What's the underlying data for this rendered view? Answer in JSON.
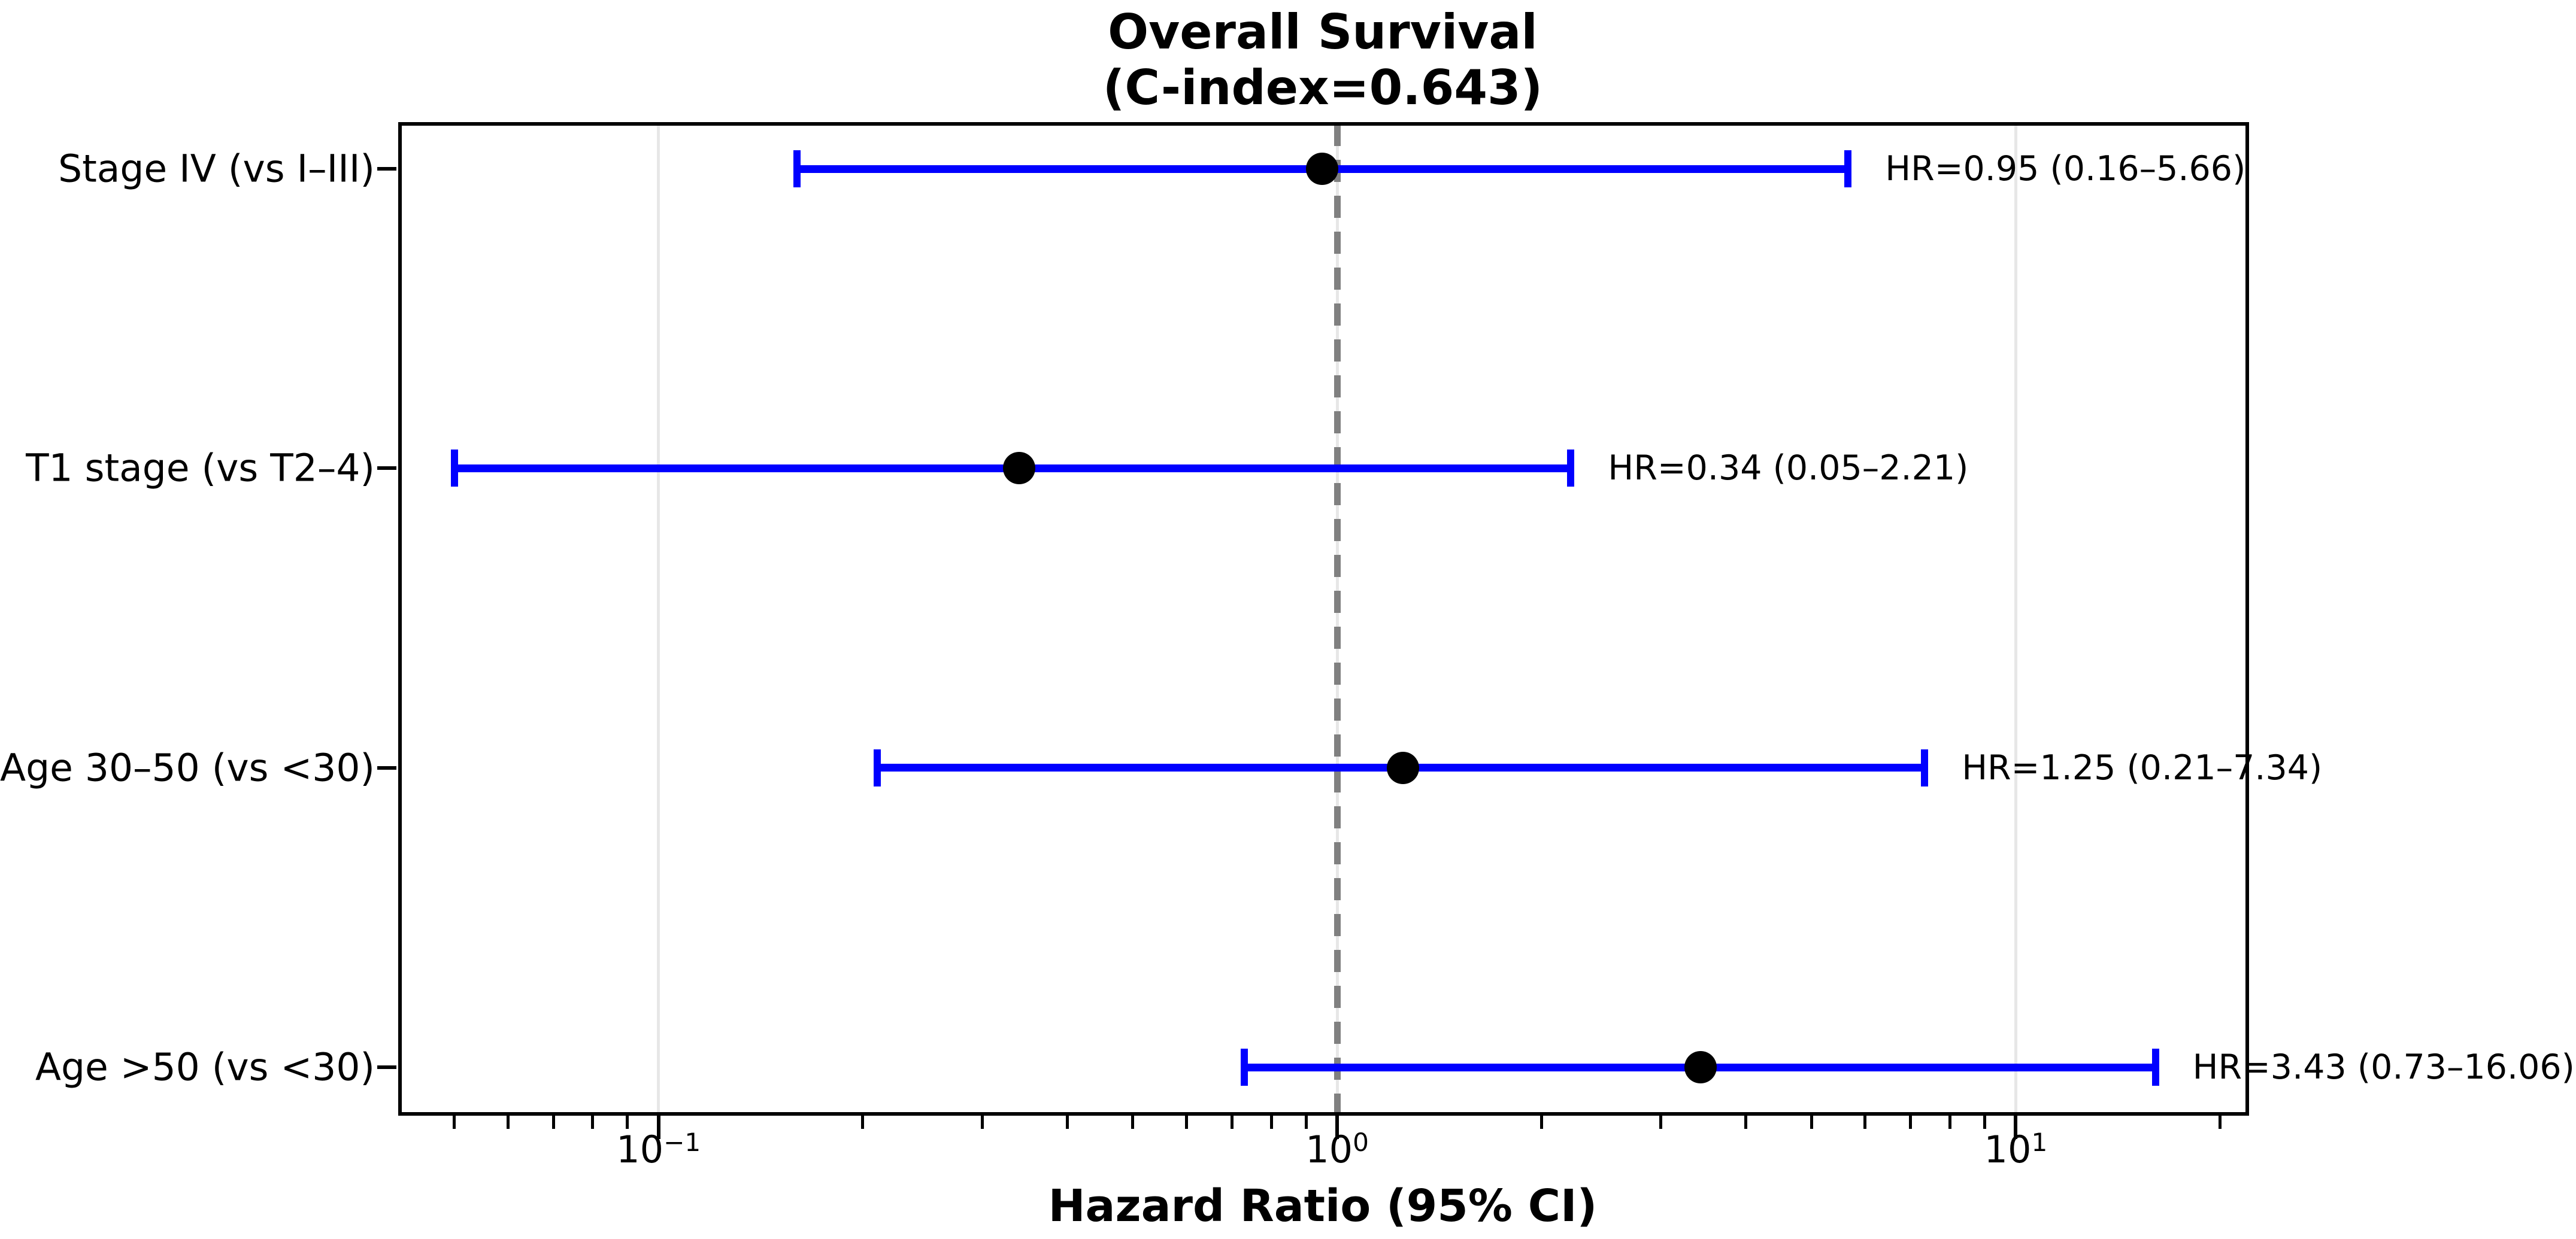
{
  "title": {
    "line1": "Overall Survival",
    "line2": "(C-index=0.643)"
  },
  "x_axis": {
    "label": "Hazard Ratio (95% CI)",
    "ticks": [
      {
        "value": 0.1,
        "base": "10",
        "exp": "−1"
      },
      {
        "value": 1,
        "base": "10",
        "exp": "0"
      },
      {
        "value": 10,
        "base": "10",
        "exp": "1"
      }
    ]
  },
  "chart_data": {
    "type": "scatter",
    "subtype": "forest-plot-with-error-bars",
    "title": "Overall Survival (C-index=0.643)",
    "xlabel": "Hazard Ratio (95% CI)",
    "ylabel": "",
    "xscale": "log",
    "xlim": [
      0.0416,
      21.8
    ],
    "x_major_ticks": [
      0.1,
      1,
      10
    ],
    "x_minor_ticks": "log decades 2-9 within range",
    "grid": "vertical gridlines at major ticks only",
    "legend": "none",
    "reference_line": {
      "x": 1.0,
      "style": "dashed",
      "orientation": "vertical"
    },
    "categories": [
      "Stage IV (vs I–III)",
      "T1 stage (vs T2–4)",
      "Age 30–50 (vs <30)",
      "Age >50 (vs <30)"
    ],
    "rows": [
      {
        "label": "Stage IV (vs I–III)",
        "hr": 0.95,
        "ci_low": 0.16,
        "ci_high": 5.66,
        "annotation": "HR=0.95 (0.16–5.66)"
      },
      {
        "label": "T1 stage (vs T2–4)",
        "hr": 0.34,
        "ci_low": 0.05,
        "ci_high": 2.21,
        "annotation": "HR=0.34 (0.05–2.21)"
      },
      {
        "label": "Age 30–50 (vs <30)",
        "hr": 1.25,
        "ci_low": 0.21,
        "ci_high": 7.34,
        "annotation": "HR=1.25 (0.21–7.34)"
      },
      {
        "label": "Age >50 (vs <30)",
        "hr": 3.43,
        "ci_low": 0.73,
        "ci_high": 16.06,
        "annotation": "HR=3.43 (0.73–16.06)"
      }
    ],
    "colors": {
      "error_bar": "#0000ff",
      "marker": "#000000",
      "reference_line": "#808080",
      "gridline": "#e7e7e7",
      "axis": "#000000",
      "text": "#000000"
    }
  }
}
